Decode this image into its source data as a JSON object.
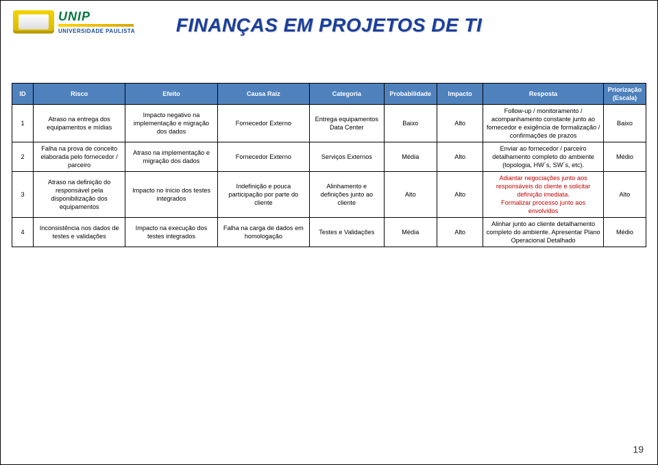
{
  "logo": {
    "brand": "UNIP",
    "subtitle": "UNIVERSIDADE PAULISTA"
  },
  "title": "FINANÇAS EM PROJETOS DE TI",
  "table": {
    "headers": [
      "ID",
      "Risco",
      "Efeito",
      "Causa Raiz",
      "Categoria",
      "Probabilidade",
      "Impacto",
      "Resposta",
      "Priorização (Escala)"
    ],
    "header_bg": "#4f81bd",
    "header_fg": "#ffffff",
    "row_bg": "#ffffff",
    "border_color": "#000000",
    "red_text_color": "#c00000",
    "rows": [
      {
        "id": "1",
        "risco": "Atraso na entrega dos equipamentos e mídias",
        "efeito": "Impacto negativo na implementação e migração dos dados",
        "causa": "Fornecedor Externo",
        "categoria": "Entrega equipamentos Data Center",
        "prob": "Baixo",
        "impacto": "Alto",
        "resposta": "Follow-up / monitoramento / acompanhamento constante junto ao fornecedor e exigência de formalização / confirmações de prazos",
        "prior": "Baixo"
      },
      {
        "id": "2",
        "risco": "Falha na prova de conceito elaborada pelo fornecedor / parceiro",
        "efeito": "Atraso na implementação e migração dos dados",
        "causa": "Fornecedor Externo",
        "categoria": "Serviços Externos",
        "prob": "Média",
        "impacto": "Alto",
        "resposta": "Enviar ao fornecedor / parceiro detalhamento completo do ambiente (topologia, HW´s, SW´s, etc).",
        "prior": "Médio"
      },
      {
        "id": "3",
        "risco": "Atraso na definição do responsável pela disponibilização dos equipamentos",
        "efeito": "Impacto no início dos testes integrados",
        "causa": "Indefinição e pouca participação por parte do cliente",
        "categoria": "Alinhamento e definições junto ao cliente",
        "prob": "Alto",
        "impacto": "Alto",
        "resposta_red_a": "Adiantar negociações junto aos responsáveis do cliente e solicitar definição imediata.",
        "resposta_red_b": "Formalizar processo junto aos envolvidos",
        "prior": "Alto"
      },
      {
        "id": "4",
        "risco": "Inconsistência nos dados de testes e validações",
        "efeito": "Impacto na execução dos testes integrados",
        "causa": "Falha na carga de dados em homologação",
        "categoria": "Testes e Validações",
        "prob": "Média",
        "impacto": "Alto",
        "resposta": "Alinhar junto ao cliente detalhamento completo do ambiente. Apresentar Plano Operacional Detalhado",
        "prior": "Médio"
      }
    ]
  },
  "page_number": "19"
}
